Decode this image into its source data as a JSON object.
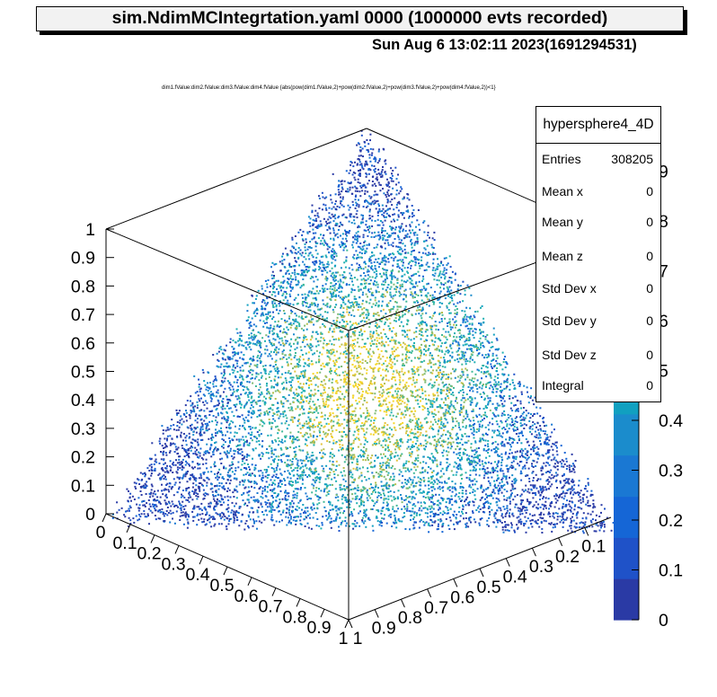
{
  "title": "sim.NdimMCIntegrtation.yaml  0000 (1000000 evts recorded)",
  "date": "Sun Aug  6 13:02:11 2023(1691294531)",
  "condition": "dim1.fValue:dim2.fValue:dim3.fValue:dim4.fValue {abs(pow(dim1.fValue,2)+pow(dim2.fValue,2)+pow(dim3.fValue,2)+pow(dim4.fValue,2))<1}",
  "stats": {
    "name": "hypersphere4_4D",
    "rows": [
      {
        "key": "Entries",
        "value": "308205"
      },
      {
        "key": "Mean x",
        "value": "0"
      },
      {
        "key": "Mean y",
        "value": "0"
      },
      {
        "key": "Mean z",
        "value": "0"
      },
      {
        "key": "Std Dev x",
        "value": "0"
      },
      {
        "key": "Std Dev y",
        "value": "0"
      },
      {
        "key": "Std Dev z",
        "value": "0"
      },
      {
        "key": "Integral",
        "value": "0"
      }
    ]
  },
  "chart_data": {
    "type": "scatter",
    "subtype": "3d-scatter-colored",
    "entries": 308205,
    "x_ticks": [
      "0",
      "0.1",
      "0.2",
      "0.3",
      "0.4",
      "0.5",
      "0.6",
      "0.7",
      "0.8",
      "0.9",
      "1"
    ],
    "y_ticks": [
      "1",
      "0.9",
      "0.8",
      "0.7",
      "0.6",
      "0.5",
      "0.4",
      "0.3",
      "0.2",
      "0.1"
    ],
    "z_ticks": [
      "0",
      "0.1",
      "0.2",
      "0.3",
      "0.4",
      "0.5",
      "0.6",
      "0.7",
      "0.8",
      "0.9",
      "1"
    ],
    "palette_ticks": [
      "0",
      "0.1",
      "0.2",
      "0.3",
      "0.4",
      "5",
      "6",
      "7",
      "8",
      "9"
    ],
    "xlim": [
      0,
      1
    ],
    "ylim": [
      0,
      1
    ],
    "zlim": [
      0,
      1
    ],
    "colors": {
      "palette": [
        "#2a3aa5",
        "#1f52c8",
        "#1566d6",
        "#1a78d3",
        "#1b8ccc",
        "#11a0c0",
        "#1fb0b2",
        "#40b897",
        "#7dba73",
        "#b5be4e",
        "#e3c23a",
        "#f5d62a"
      ]
    }
  }
}
